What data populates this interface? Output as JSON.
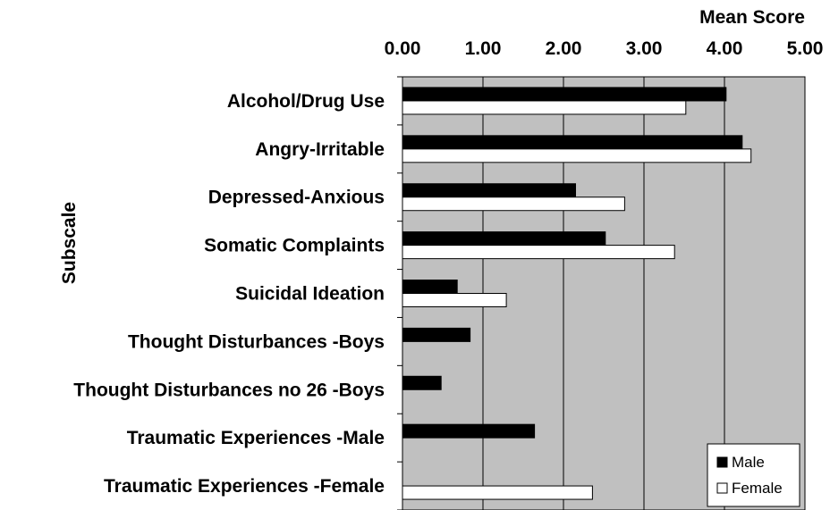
{
  "chart_data": {
    "type": "bar",
    "orientation": "horizontal",
    "xlabel": "Mean Score",
    "ylabel": "Subscale",
    "xlim": [
      0,
      5
    ],
    "xticks": [
      "0.00",
      "1.00",
      "2.00",
      "3.00",
      "4.00",
      "5.00"
    ],
    "categories": [
      "Alcohol/Drug Use",
      "Angry-Irritable",
      "Depressed-Anxious",
      "Somatic Complaints",
      "Suicidal Ideation",
      "Thought Disturbances -Boys",
      "Thought Disturbances no 26 -Boys",
      "Traumatic Experiences -Male",
      "Traumatic Experiences -Female"
    ],
    "series": [
      {
        "name": "Male",
        "color": "#000000",
        "values": [
          4.02,
          4.22,
          2.15,
          2.52,
          0.68,
          0.84,
          0.48,
          1.64,
          null
        ]
      },
      {
        "name": "Female",
        "color": "#ffffff",
        "values": [
          3.52,
          4.33,
          2.76,
          3.38,
          1.29,
          null,
          null,
          null,
          2.36
        ]
      }
    ],
    "grid": true,
    "legend_position": "bottom-right",
    "plot_background": "#c0c0c0"
  }
}
